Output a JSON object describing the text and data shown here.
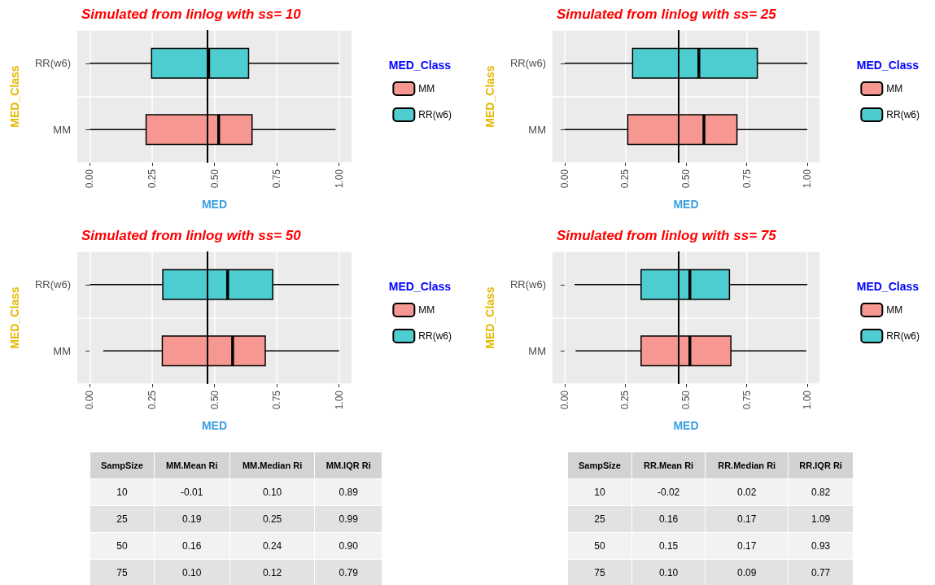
{
  "chart_data": [
    {
      "type": "box",
      "title": "Simulated from linlog with ss= 10",
      "xlabel": "MED",
      "ylabel": "MED_Class",
      "legend_title": "MED_Class",
      "orientation": "horizontal",
      "categories": [
        "RR(w6)",
        "MM"
      ],
      "xlim": [
        -0.05,
        1.05
      ],
      "xticks": [
        {
          "value": 0,
          "label": "0.00"
        },
        {
          "value": 0.25,
          "label": "0.25"
        },
        {
          "value": 0.5,
          "label": "0.50"
        },
        {
          "value": 0.75,
          "label": "0.75"
        },
        {
          "value": 1,
          "label": "1.00"
        }
      ],
      "grid": true,
      "legend": "right",
      "ref_lines": [
        {
          "axis": "x",
          "value": 0.47,
          "label": null
        }
      ],
      "series": [
        {
          "name": "MM",
          "color": "#f69891",
          "boxes": [
            null,
            {
              "low": 0,
              "q1": 0.226,
              "median": 0.517,
              "q3": 0.651,
              "high": 0.986
            }
          ]
        },
        {
          "name": "RR(w6)",
          "color": "#4ecdd0",
          "boxes": [
            {
              "low": 0,
              "q1": 0.248,
              "median": 0.477,
              "q3": 0.637,
              "high": 1
            },
            null
          ]
        }
      ]
    },
    {
      "type": "box",
      "title": "Simulated from linlog with ss= 25",
      "xlabel": "MED",
      "ylabel": "MED_Class",
      "legend_title": "MED_Class",
      "orientation": "horizontal",
      "categories": [
        "RR(w6)",
        "MM"
      ],
      "xlim": [
        -0.05,
        1.05
      ],
      "xticks": [
        {
          "value": 0,
          "label": "0.00"
        },
        {
          "value": 0.25,
          "label": "0.25"
        },
        {
          "value": 0.5,
          "label": "0.50"
        },
        {
          "value": 0.75,
          "label": "0.75"
        },
        {
          "value": 1,
          "label": "1.00"
        }
      ],
      "grid": true,
      "legend": "right",
      "ref_lines": [
        {
          "axis": "x",
          "value": 0.47,
          "label": null
        }
      ],
      "series": [
        {
          "name": "MM",
          "color": "#f69891",
          "boxes": [
            null,
            {
              "low": 0,
              "q1": 0.26,
              "median": 0.574,
              "q3": 0.71,
              "high": 1
            }
          ]
        },
        {
          "name": "RR(w6)",
          "color": "#4ecdd0",
          "boxes": [
            {
              "low": 0,
              "q1": 0.28,
              "median": 0.553,
              "q3": 0.794,
              "high": 1
            },
            null
          ]
        }
      ]
    },
    {
      "type": "box",
      "title": "Simulated from linlog with ss= 50",
      "xlabel": "MED",
      "ylabel": "MED_Class",
      "legend_title": "MED_Class",
      "orientation": "horizontal",
      "categories": [
        "RR(w6)",
        "MM"
      ],
      "xlim": [
        -0.05,
        1.05
      ],
      "xticks": [
        {
          "value": 0,
          "label": "0.00"
        },
        {
          "value": 0.25,
          "label": "0.25"
        },
        {
          "value": 0.5,
          "label": "0.50"
        },
        {
          "value": 0.75,
          "label": "0.75"
        },
        {
          "value": 1,
          "label": "1.00"
        }
      ],
      "grid": true,
      "legend": "right",
      "ref_lines": [
        {
          "axis": "x",
          "value": 0.47,
          "label": null
        }
      ],
      "series": [
        {
          "name": "MM",
          "color": "#f69891",
          "boxes": [
            null,
            {
              "low": 0.054,
              "q1": 0.291,
              "median": 0.573,
              "q3": 0.704,
              "high": 1
            }
          ]
        },
        {
          "name": "RR(w6)",
          "color": "#4ecdd0",
          "boxes": [
            {
              "low": 0,
              "q1": 0.293,
              "median": 0.553,
              "q3": 0.734,
              "high": 1
            },
            null
          ]
        }
      ]
    },
    {
      "type": "box",
      "title": "Simulated from linlog with ss= 75",
      "xlabel": "MED",
      "ylabel": "MED_Class",
      "legend_title": "MED_Class",
      "orientation": "horizontal",
      "categories": [
        "RR(w6)",
        "MM"
      ],
      "xlim": [
        -0.05,
        1.05
      ],
      "xticks": [
        {
          "value": 0,
          "label": "0.00"
        },
        {
          "value": 0.25,
          "label": "0.25"
        },
        {
          "value": 0.5,
          "label": "0.50"
        },
        {
          "value": 0.75,
          "label": "0.75"
        },
        {
          "value": 1,
          "label": "1.00"
        }
      ],
      "grid": true,
      "legend": "right",
      "ref_lines": [
        {
          "axis": "x",
          "value": 0.47,
          "label": null
        }
      ],
      "series": [
        {
          "name": "MM",
          "color": "#f69891",
          "boxes": [
            null,
            {
              "low": 0.045,
              "q1": 0.315,
              "median": 0.516,
              "q3": 0.685,
              "high": 0.996
            }
          ]
        },
        {
          "name": "RR(w6)",
          "color": "#4ecdd0",
          "boxes": [
            {
              "low": 0.041,
              "q1": 0.315,
              "median": 0.516,
              "q3": 0.679,
              "high": 1
            },
            null
          ]
        }
      ]
    },
    {
      "type": "other",
      "categories": [
        "SampSize",
        "MM.Mean Ri",
        "MM.Median Ri",
        "MM.IQR Ri"
      ],
      "cell_labels": [
        [
          "10",
          "-0.01",
          "0.10",
          "0.89"
        ],
        [
          "25",
          "0.19",
          "0.25",
          "0.99"
        ],
        [
          "50",
          "0.16",
          "0.24",
          "0.90"
        ],
        [
          "75",
          "0.10",
          "0.12",
          "0.79"
        ]
      ]
    },
    {
      "type": "other",
      "categories": [
        "SampSize",
        "RR.Mean Ri",
        "RR.Median Ri",
        "RR.IQR Ri"
      ],
      "cell_labels": [
        [
          "10",
          "-0.02",
          "0.02",
          "0.82"
        ],
        [
          "25",
          "0.16",
          "0.17",
          "1.09"
        ],
        [
          "50",
          "0.15",
          "0.17",
          "0.93"
        ],
        [
          "75",
          "0.10",
          "0.09",
          "0.77"
        ]
      ]
    }
  ]
}
